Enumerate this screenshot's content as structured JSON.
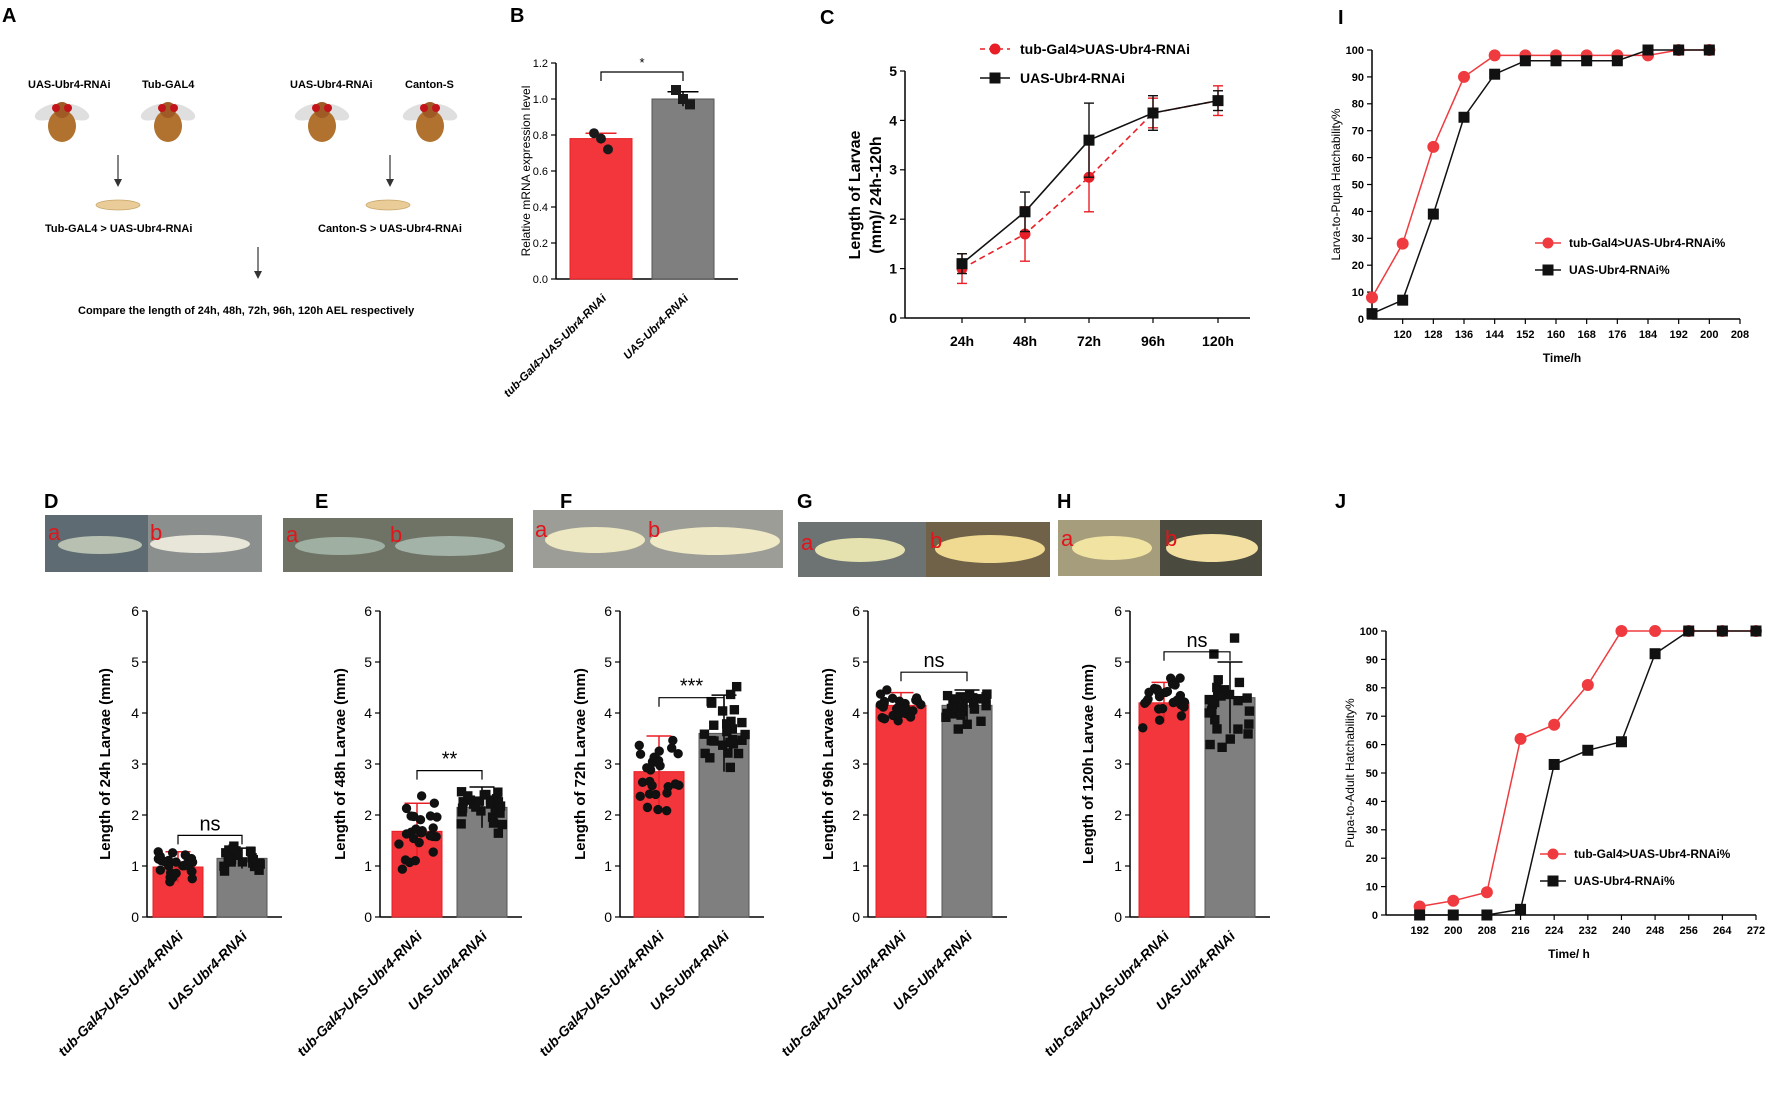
{
  "figure": {
    "panel_letters": [
      "A",
      "B",
      "C",
      "I",
      "D",
      "E",
      "F",
      "G",
      "H",
      "J"
    ],
    "colors": {
      "red": "#f2363b",
      "red_dark": "#e81f26",
      "gray": "#7f7f7f",
      "black": "#111111"
    }
  },
  "panel_a": {
    "letter": "A",
    "cross1_left": "UAS-Ubr4-RNAi",
    "cross1_right": "Tub-GAL4",
    "cross1_result": "Tub-GAL4 > UAS-Ubr4-RNAi",
    "cross2_left": "UAS-Ubr4-RNAi",
    "cross2_right": "Canton-S",
    "cross2_result": "Canton-S > UAS-Ubr4-RNAi",
    "caption": "Compare the length of 24h, 48h, 72h, 96h, 120h AEL respectively"
  },
  "photos": {
    "label_a": "a",
    "label_b": "b"
  },
  "chart_data": [
    {
      "panel": "B",
      "type": "bar",
      "title": "",
      "xlabel": "",
      "ylabel": "Relative mRNA expression level",
      "ylim": [
        0,
        1.2
      ],
      "yticks": [
        "0.0",
        "0.2",
        "0.4",
        "0.6",
        "0.8",
        "1.0",
        "1.2"
      ],
      "categories": [
        "tub-Gal4>UAS-Ubr4-RNAi",
        "UAS-Ubr4-RNAi"
      ],
      "values": [
        0.78,
        1.0
      ],
      "errors": [
        0.03,
        0.04
      ],
      "points": [
        [
          0.81,
          0.78,
          0.72
        ],
        [
          1.05,
          1.0,
          0.97
        ]
      ],
      "significance": "*"
    },
    {
      "panel": "C",
      "type": "line",
      "ylabel": "Length of Larvae (mm)/ 24h-120h",
      "ylim": [
        0,
        5
      ],
      "yticks": [
        "0",
        "1",
        "2",
        "3",
        "4",
        "5"
      ],
      "x": [
        "24h",
        "48h",
        "72h",
        "96h",
        "120h"
      ],
      "series": [
        {
          "name": "tub-Gal4>UAS-Ubr4-RNAi",
          "values": [
            1.0,
            1.7,
            2.85,
            4.15,
            4.4
          ],
          "errors": [
            0.3,
            0.55,
            0.7,
            0.3,
            0.3
          ],
          "style": "dashed",
          "marker": "circle"
        },
        {
          "name": "UAS-Ubr4-RNAi",
          "values": [
            1.1,
            2.15,
            3.6,
            4.15,
            4.4
          ],
          "errors": [
            0.2,
            0.4,
            0.75,
            0.35,
            0.2
          ],
          "style": "solid",
          "marker": "square"
        }
      ]
    },
    {
      "panel": "I",
      "type": "line",
      "xlabel": "Time/h",
      "ylabel": "Larva-to-Pupa Hatchability%",
      "xlim": [
        112,
        208
      ],
      "ylim": [
        0,
        100
      ],
      "xticks": [
        "120",
        "128",
        "136",
        "144",
        "152",
        "160",
        "168",
        "176",
        "184",
        "192",
        "200",
        "208"
      ],
      "yticks": [
        "0",
        "10",
        "20",
        "30",
        "40",
        "50",
        "60",
        "70",
        "80",
        "90",
        "100"
      ],
      "series": [
        {
          "name": "tub-Gal4>UAS-Ubr4-RNAi%",
          "x": [
            112,
            120,
            128,
            136,
            144,
            152,
            160,
            168,
            176,
            184,
            192,
            200
          ],
          "y": [
            8,
            28,
            64,
            90,
            98,
            98,
            98,
            98,
            98,
            98,
            100,
            100
          ]
        },
        {
          "name": "UAS-Ubr4-RNAi%",
          "x": [
            112,
            120,
            128,
            136,
            144,
            152,
            160,
            168,
            176,
            184,
            192,
            200
          ],
          "y": [
            2,
            7,
            39,
            75,
            91,
            96,
            96,
            96,
            96,
            100,
            100,
            100
          ]
        }
      ]
    },
    {
      "panel": "D",
      "type": "bar",
      "ylabel": "Length of 24h Larvae (mm)",
      "ylim": [
        0,
        6
      ],
      "yticks": [
        "0",
        "1",
        "2",
        "3",
        "4",
        "5",
        "6"
      ],
      "categories": [
        "tub-Gal4>UAS-Ubr4-RNAi",
        "UAS-Ubr4-RNAi"
      ],
      "values": [
        0.98,
        1.15
      ],
      "errors": [
        0.3,
        0.2
      ],
      "significance": "ns"
    },
    {
      "panel": "E",
      "type": "bar",
      "ylabel": "Length of 48h Larvae (mm)",
      "ylim": [
        0,
        6
      ],
      "yticks": [
        "0",
        "1",
        "2",
        "3",
        "4",
        "5",
        "6"
      ],
      "categories": [
        "tub-Gal4>UAS-Ubr4-RNAi",
        "UAS-Ubr4-RNAi"
      ],
      "values": [
        1.68,
        2.15
      ],
      "errors": [
        0.55,
        0.4
      ],
      "significance": "**"
    },
    {
      "panel": "F",
      "type": "bar",
      "ylabel": "Length of 72h Larvae (mm)",
      "ylim": [
        0,
        6
      ],
      "yticks": [
        "0",
        "1",
        "2",
        "3",
        "4",
        "5",
        "6"
      ],
      "categories": [
        "tub-Gal4>UAS-Ubr4-RNAi",
        "UAS-Ubr4-RNAi"
      ],
      "values": [
        2.85,
        3.6
      ],
      "errors": [
        0.7,
        0.75
      ],
      "significance": "***"
    },
    {
      "panel": "G",
      "type": "bar",
      "ylabel": "Length of 96h Larvae (mm)",
      "ylim": [
        0,
        6
      ],
      "yticks": [
        "0",
        "1",
        "2",
        "3",
        "4",
        "5",
        "6"
      ],
      "categories": [
        "tub-Gal4>UAS-Ubr4-RNAi",
        "UAS-Ubr4-RNAi"
      ],
      "values": [
        4.15,
        4.15
      ],
      "errors": [
        0.25,
        0.3
      ],
      "significance": "ns"
    },
    {
      "panel": "H",
      "type": "bar",
      "ylabel": "Length of 120h Larvae (mm)",
      "ylim": [
        0,
        6
      ],
      "yticks": [
        "0",
        "1",
        "2",
        "3",
        "4",
        "5",
        "6"
      ],
      "categories": [
        "tub-Gal4>UAS-Ubr4-RNAi",
        "UAS-Ubr4-RNAi"
      ],
      "values": [
        4.2,
        4.3
      ],
      "errors": [
        0.4,
        0.7
      ],
      "significance": "ns"
    },
    {
      "panel": "J",
      "type": "line",
      "xlabel": "Time/ h",
      "ylabel": "Pupa-to-Adult Hatchability%",
      "xlim": [
        184,
        272
      ],
      "ylim": [
        0,
        100
      ],
      "xticks": [
        "192",
        "200",
        "208",
        "216",
        "224",
        "232",
        "240",
        "248",
        "256",
        "264",
        "272"
      ],
      "yticks": [
        "0",
        "10",
        "20",
        "30",
        "40",
        "50",
        "60",
        "70",
        "80",
        "90",
        "100"
      ],
      "series": [
        {
          "name": "tub-Gal4>UAS-Ubr4-RNAi%",
          "x": [
            192,
            200,
            208,
            216,
            224,
            232,
            240,
            248,
            256,
            264,
            272
          ],
          "y": [
            3,
            5,
            8,
            62,
            67,
            81,
            100,
            100,
            100,
            100,
            100
          ]
        },
        {
          "name": "UAS-Ubr4-RNAi%",
          "x": [
            192,
            200,
            208,
            216,
            224,
            232,
            240,
            248,
            256,
            264,
            272
          ],
          "y": [
            0,
            0,
            0,
            2,
            53,
            58,
            61,
            92,
            100,
            100,
            100
          ]
        }
      ]
    }
  ]
}
